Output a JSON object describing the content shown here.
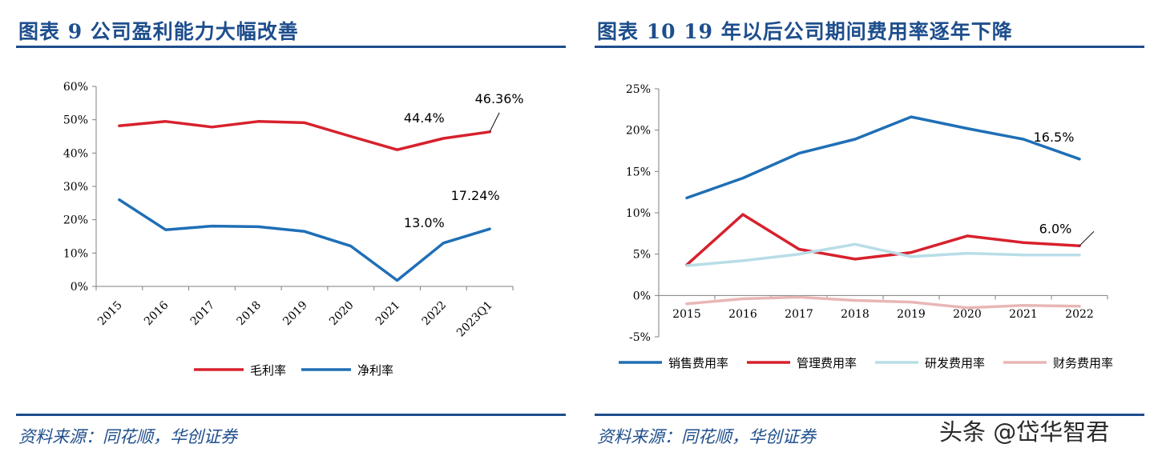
{
  "left": {
    "title": "图表 9   公司盈利能力大幅改善",
    "source": "资料来源：同花顺，华创证券"
  },
  "right": {
    "title": "图表 10    19 年以后公司期间费用率逐年下降",
    "source": "资料来源：同花顺，华创证券"
  },
  "watermark": "头条 @岱华智君",
  "colors": {
    "brand": "#1e4e8c",
    "red": "#d7212d",
    "blue": "#1f6fb6",
    "lightblue": "#b8dde7",
    "pink": "#e8b6b6"
  },
  "chart_data": [
    {
      "type": "line",
      "title": "公司盈利能力大幅改善",
      "categories": [
        "2015",
        "2016",
        "2017",
        "2018",
        "2019",
        "2020",
        "2021",
        "2022",
        "2023Q1"
      ],
      "ylim": [
        0,
        60
      ],
      "yticks": [
        0,
        10,
        20,
        30,
        40,
        50,
        60
      ],
      "ytick_labels": [
        "0%",
        "10%",
        "20%",
        "30%",
        "40%",
        "50%",
        "60%"
      ],
      "legend": "bottom",
      "series": [
        {
          "name": "毛利率",
          "color": "#d7212d",
          "values": [
            48.2,
            49.5,
            47.8,
            49.5,
            49.1,
            45.0,
            41.0,
            44.4,
            46.36
          ]
        },
        {
          "name": "净利率",
          "color": "#1f6fb6",
          "values": [
            26.0,
            17.0,
            18.1,
            17.9,
            16.5,
            12.1,
            1.8,
            13.0,
            17.24
          ]
        }
      ],
      "annotations": [
        {
          "series": 0,
          "index": 7,
          "text": "44.4%"
        },
        {
          "series": 0,
          "index": 8,
          "text": "46.36%",
          "leader": true
        },
        {
          "series": 1,
          "index": 7,
          "text": "13.0%"
        },
        {
          "series": 1,
          "index": 8,
          "text": "17.24%"
        }
      ]
    },
    {
      "type": "line",
      "title": "19年以后公司期间费用率逐年下降",
      "categories": [
        "2015",
        "2016",
        "2017",
        "2018",
        "2019",
        "2020",
        "2021",
        "2022"
      ],
      "ylim": [
        -5,
        25
      ],
      "yticks": [
        -5,
        0,
        5,
        10,
        15,
        20,
        25
      ],
      "ytick_labels": [
        "-5%",
        "0%",
        "5%",
        "10%",
        "15%",
        "20%",
        "25%"
      ],
      "legend": "bottom",
      "series": [
        {
          "name": "销售费用率",
          "color": "#1f6fb6",
          "values": [
            11.8,
            14.2,
            17.2,
            18.9,
            21.6,
            20.2,
            18.9,
            16.5
          ]
        },
        {
          "name": "管理费用率",
          "color": "#d7212d",
          "values": [
            3.7,
            9.8,
            5.6,
            4.4,
            5.2,
            7.2,
            6.4,
            6.0
          ]
        },
        {
          "name": "研发费用率",
          "color": "#b8dde7",
          "values": [
            3.6,
            4.2,
            5.0,
            6.2,
            4.7,
            5.1,
            4.9,
            4.9
          ]
        },
        {
          "name": "财务费用率",
          "color": "#e8b6b6",
          "values": [
            -1.0,
            -0.4,
            -0.2,
            -0.6,
            -0.8,
            -1.5,
            -1.2,
            -1.3
          ]
        }
      ],
      "annotations": [
        {
          "series": 0,
          "index": 7,
          "text": "16.5%"
        },
        {
          "series": 1,
          "index": 7,
          "text": "6.0%",
          "leader": true
        }
      ]
    }
  ]
}
